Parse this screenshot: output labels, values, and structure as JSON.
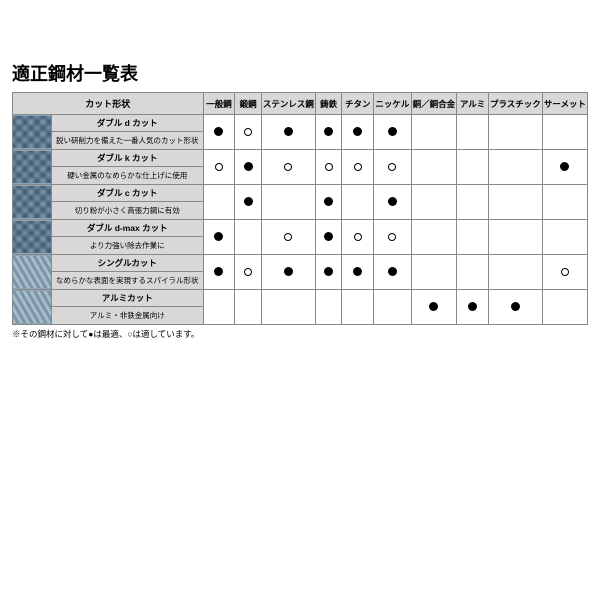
{
  "title": "適正鋼材一覧表",
  "footnote": "※その鋼材に対して●は最適、○は適しています。",
  "columns": [
    "一般鋼",
    "鍛鋼",
    "ステンレス鋼",
    "鋳鉄",
    "チタン",
    "ニッケル",
    "銅／銅合金",
    "アルミ",
    "プラスチック",
    "サーメット"
  ],
  "cutShapeHeader": "カット形状",
  "rows": [
    {
      "name": "ダブル d カット",
      "desc": "鋭い研削力を備えた一番人気のカット形状",
      "imgClass": "cross",
      "marks": [
        "solid",
        "open",
        "solid",
        "solid",
        "solid",
        "solid",
        "",
        "",
        "",
        ""
      ]
    },
    {
      "name": "ダブル k カット",
      "desc": "硬い金属のなめらかな仕上げに使用",
      "imgClass": "cross",
      "marks": [
        "open",
        "solid",
        "open",
        "open",
        "open",
        "open",
        "",
        "",
        "",
        "solid"
      ]
    },
    {
      "name": "ダブル c カット",
      "desc": "切り粉が小さく高張力鋼に有効",
      "imgClass": "cross",
      "marks": [
        "",
        "solid",
        "",
        "solid",
        "",
        "solid",
        "",
        "",
        "",
        ""
      ]
    },
    {
      "name": "ダブル d-max カット",
      "desc": "より力強い除去作業に",
      "imgClass": "cross",
      "marks": [
        "solid",
        "",
        "open",
        "solid",
        "open",
        "open",
        "",
        "",
        "",
        ""
      ]
    },
    {
      "name": "シングルカット",
      "desc": "なめらかな表面を実現するスパイラル形状",
      "imgClass": "spiral",
      "marks": [
        "solid",
        "open",
        "solid",
        "solid",
        "solid",
        "solid",
        "",
        "",
        "",
        "open"
      ]
    },
    {
      "name": "アルミカット",
      "desc": "アルミ・非鉄金属向け",
      "imgClass": "spiral",
      "marks": [
        "",
        "",
        "",
        "",
        "",
        "",
        "solid",
        "solid",
        "solid",
        ""
      ]
    }
  ]
}
